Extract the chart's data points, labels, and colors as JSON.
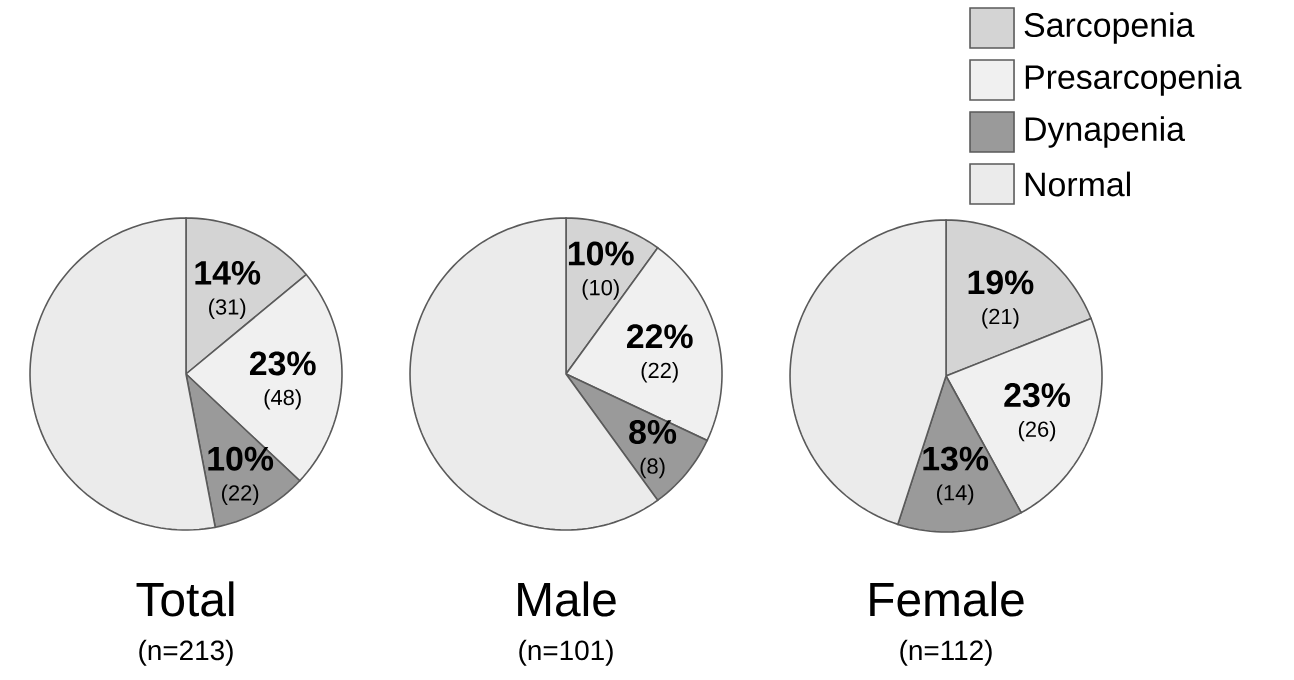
{
  "chart_data": [
    {
      "type": "pie",
      "title": "Total",
      "subtitle": "(n=213)",
      "categories": [
        null,
        null,
        null,
        null
      ],
      "values": [
        14,
        23,
        10,
        53
      ],
      "colors": [
        "#d4d4d4",
        "#f0f0f0",
        "#9a9a9a",
        "#ebebeb"
      ],
      "value_labels": [
        "14%",
        "23%",
        "10%",
        null
      ],
      "annotations": [
        "(31)",
        "(48)",
        "(22)"
      ]
    },
    {
      "type": "pie",
      "title": "Male",
      "subtitle": "(n=101)",
      "categories": [
        null,
        null,
        null,
        null
      ],
      "values": [
        10,
        22,
        8,
        60
      ],
      "colors": [
        "#d4d4d4",
        "#f0f0f0",
        "#9a9a9a",
        "#ebebeb"
      ],
      "value_labels": [
        "10%",
        "22%",
        "8%",
        null
      ],
      "annotations": [
        "(10)",
        "(22)",
        "(8)"
      ]
    },
    {
      "type": "pie",
      "title": "Female",
      "subtitle": "(n=112)",
      "categories": [
        "Sarcopenia",
        "Presarcopenia",
        "Dynapenia",
        "Normal"
      ],
      "values": [
        19,
        23,
        13,
        45
      ],
      "colors": [
        "#d4d4d4",
        "#f0f0f0",
        "#9a9a9a",
        "#ebebeb"
      ],
      "value_labels": [
        "19%",
        "23%",
        "13%",
        null
      ],
      "annotations": [
        "(21)",
        "(26)",
        "(14)"
      ],
      "legend": "top right"
    }
  ]
}
